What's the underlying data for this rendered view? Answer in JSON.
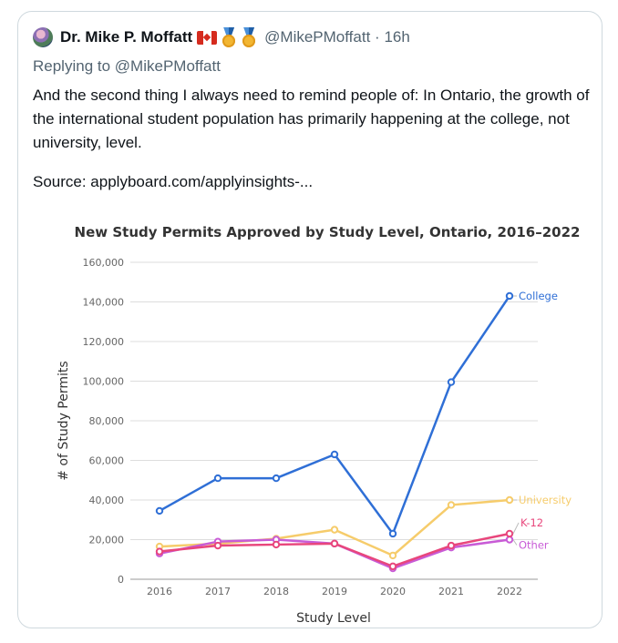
{
  "tweet": {
    "author_name": "Dr. Mike P. Moffatt",
    "handle": "@MikePMoffatt",
    "separator": "·",
    "time": "16h",
    "replying_prefix": "Replying to",
    "replying_handle": "@MikePMoffatt",
    "body": "And the second thing I always need to remind people of: In Ontario, the growth of the international student population has primarily happening at the college, not university, level.",
    "source": "Source: applyboard.com/applyinsights-..."
  },
  "icons": [
    "avatar",
    "canada-flag-icon",
    "medal-icon",
    "medal-icon"
  ],
  "colors": {
    "College": "#2f6fd6",
    "University": "#f6cc6b",
    "K-12": "#e8467c",
    "Other": "#c85bd6"
  },
  "chart_data": {
    "type": "line",
    "title": "New Study Permits Approved by Study Level, Ontario, 2016–2022",
    "xlabel": "Study Level",
    "ylabel": "# of Study Permits",
    "x": [
      "2016",
      "2017",
      "2018",
      "2019",
      "2020",
      "2021",
      "2022"
    ],
    "ylim": [
      0,
      160000
    ],
    "yticks": [
      "0",
      "20,000",
      "40,000",
      "60,000",
      "80,000",
      "100,000",
      "120,000",
      "140,000",
      "160,000"
    ],
    "grid": true,
    "legend": "line-end labels",
    "series": [
      {
        "name": "College",
        "values": [
          34500,
          51000,
          51000,
          63000,
          23000,
          99500,
          143000
        ]
      },
      {
        "name": "University",
        "values": [
          16500,
          18000,
          20500,
          25000,
          12000,
          37500,
          40000
        ]
      },
      {
        "name": "K-12",
        "values": [
          14000,
          17000,
          17500,
          18000,
          6500,
          17000,
          23000
        ]
      },
      {
        "name": "Other",
        "values": [
          13000,
          19000,
          20000,
          18000,
          5500,
          16000,
          20000
        ]
      }
    ]
  }
}
